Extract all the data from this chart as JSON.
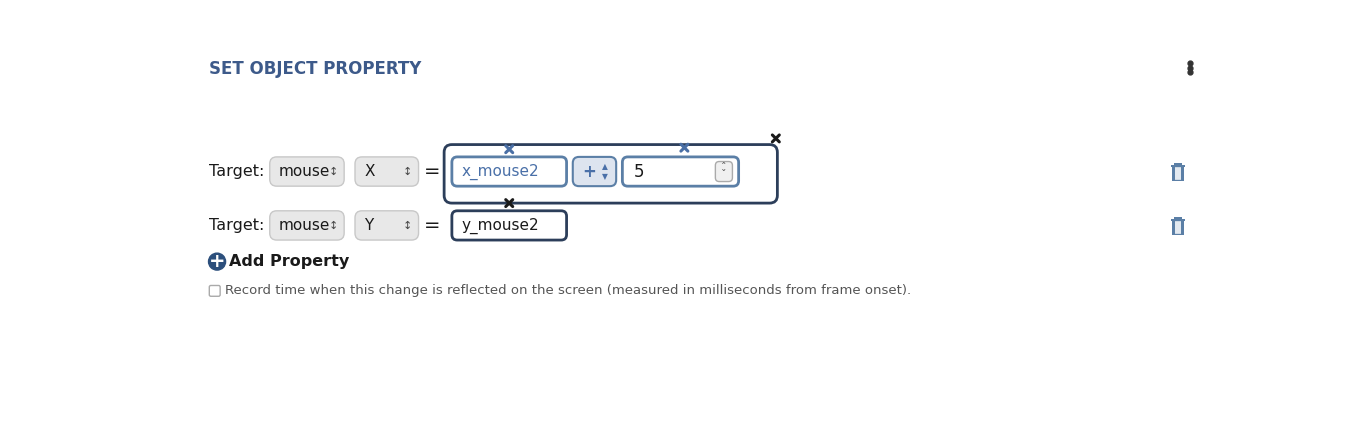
{
  "title": "SET OBJECT PROPERTY",
  "title_color": "#3d5a8a",
  "title_fontsize": 12,
  "bg_color": "#ffffff",
  "dropdown_bg": "#e8e8e8",
  "dropdown_border": "#c8c8c8",
  "field_bg": "#ffffff",
  "field_border_blue": "#5b7fa6",
  "outer_box_border": "#2c3e5a",
  "op_box_bg": "#dde4ef",
  "text_color": "#1a1a1a",
  "blue_text": "#4a70a8",
  "add_icon_color": "#2c4f7c",
  "trash_color": "#5b7fa6",
  "x_mark_blue": "#4a6fa5",
  "x_mark_dark": "#1a1a1a",
  "record_text": "Record time when this change is reflected on the screen (measured in milliseconds from frame onset).",
  "add_property": "Add Property",
  "row1_field": "x_mouse2",
  "row1_op": "+",
  "row1_num": "5",
  "row2_field": "y_mouse2",
  "dots_color": "#333333"
}
